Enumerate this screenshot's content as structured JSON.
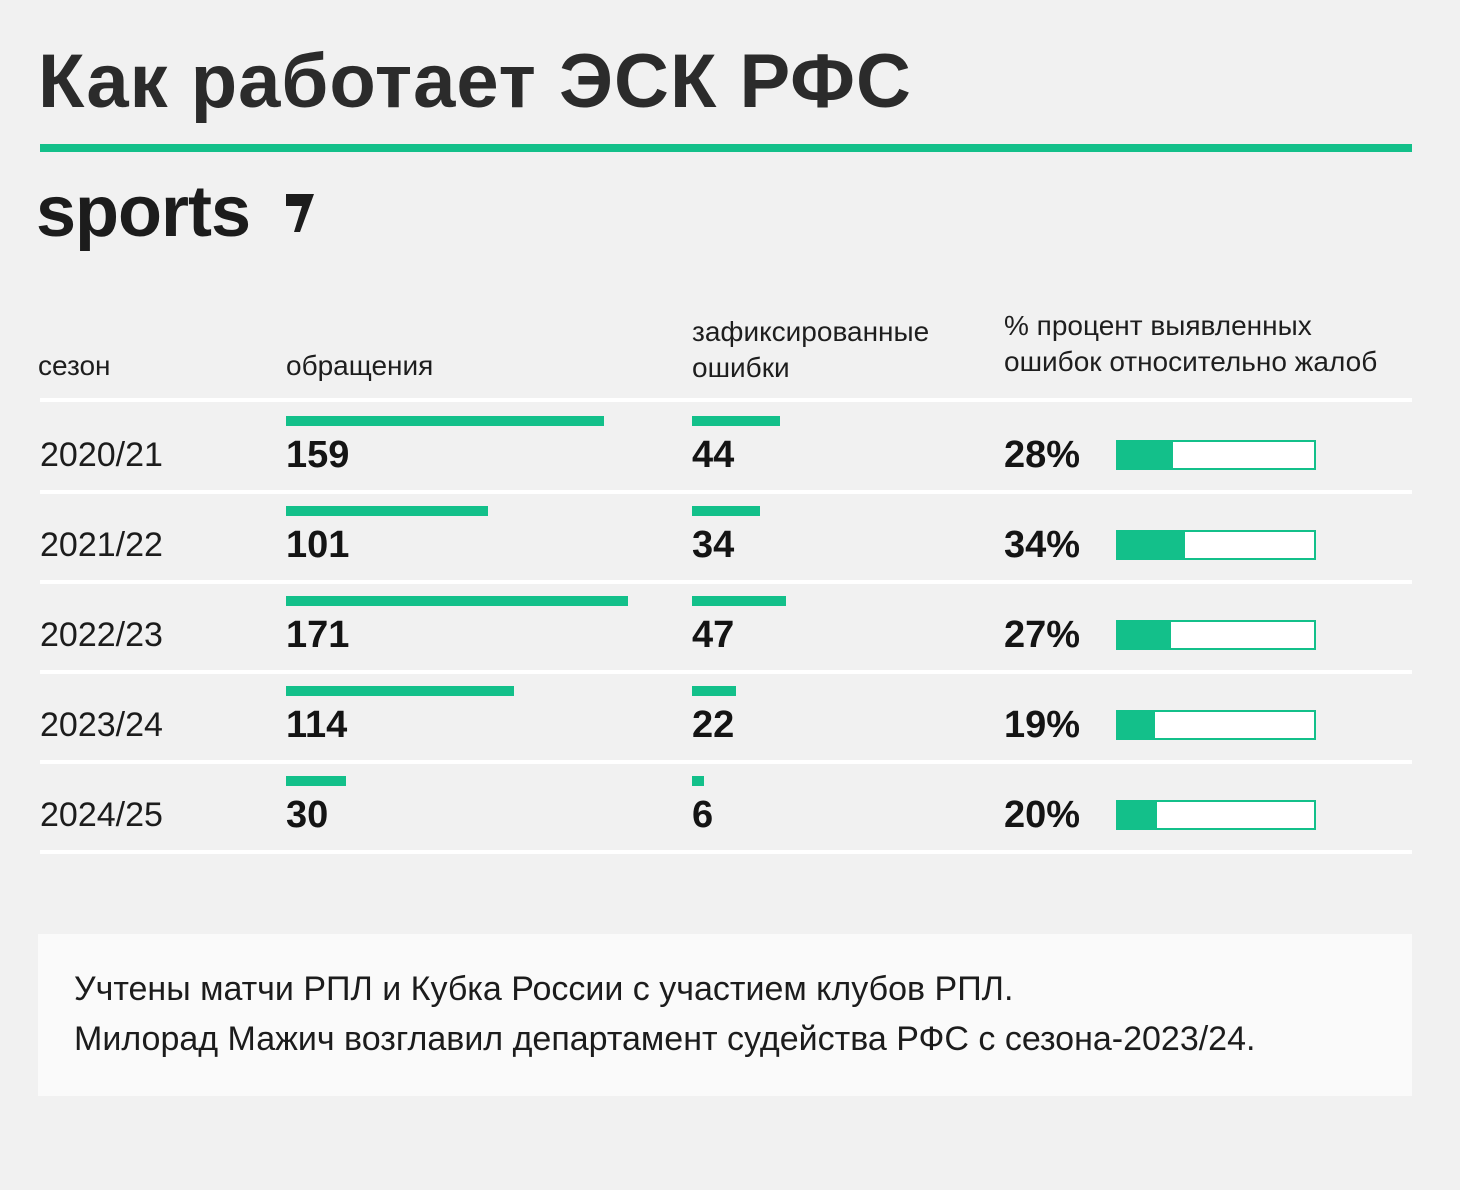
{
  "title": "Как работает ЭСК РФС",
  "logo_text": "sports",
  "headers": {
    "season": "сезон",
    "appeals": "обращения",
    "errors_line1": "зафиксированные",
    "errors_line2": "ошибки",
    "pct_line1": "% процент выявленных",
    "pct_line2": "ошибок относительно жалоб"
  },
  "colors": {
    "accent": "#13c08a",
    "background": "#f1f1f1",
    "text": "#1c1c1c"
  },
  "chart_data": {
    "type": "table",
    "columns": [
      "сезон",
      "обращения",
      "зафиксированные ошибки",
      "% процент выявленных ошибок относительно жалоб"
    ],
    "rows": [
      {
        "season": "2020/21",
        "appeals": 159,
        "errors": 44,
        "percent": 28,
        "percent_label": "28%"
      },
      {
        "season": "2021/22",
        "appeals": 101,
        "errors": 34,
        "percent": 34,
        "percent_label": "34%"
      },
      {
        "season": "2022/23",
        "appeals": 171,
        "errors": 47,
        "percent": 27,
        "percent_label": "27%"
      },
      {
        "season": "2023/24",
        "appeals": 114,
        "errors": 22,
        "percent": 19,
        "percent_label": "19%"
      },
      {
        "season": "2024/25",
        "appeals": 30,
        "errors": 6,
        "percent": 20,
        "percent_label": "20%"
      }
    ]
  },
  "note": {
    "line1": "Учтены матчи РПЛ и Кубка России с участием клубов РПЛ.",
    "line2": "Милорад Мажич возглавил департамент судейства РФС с сезона-2023/24."
  }
}
